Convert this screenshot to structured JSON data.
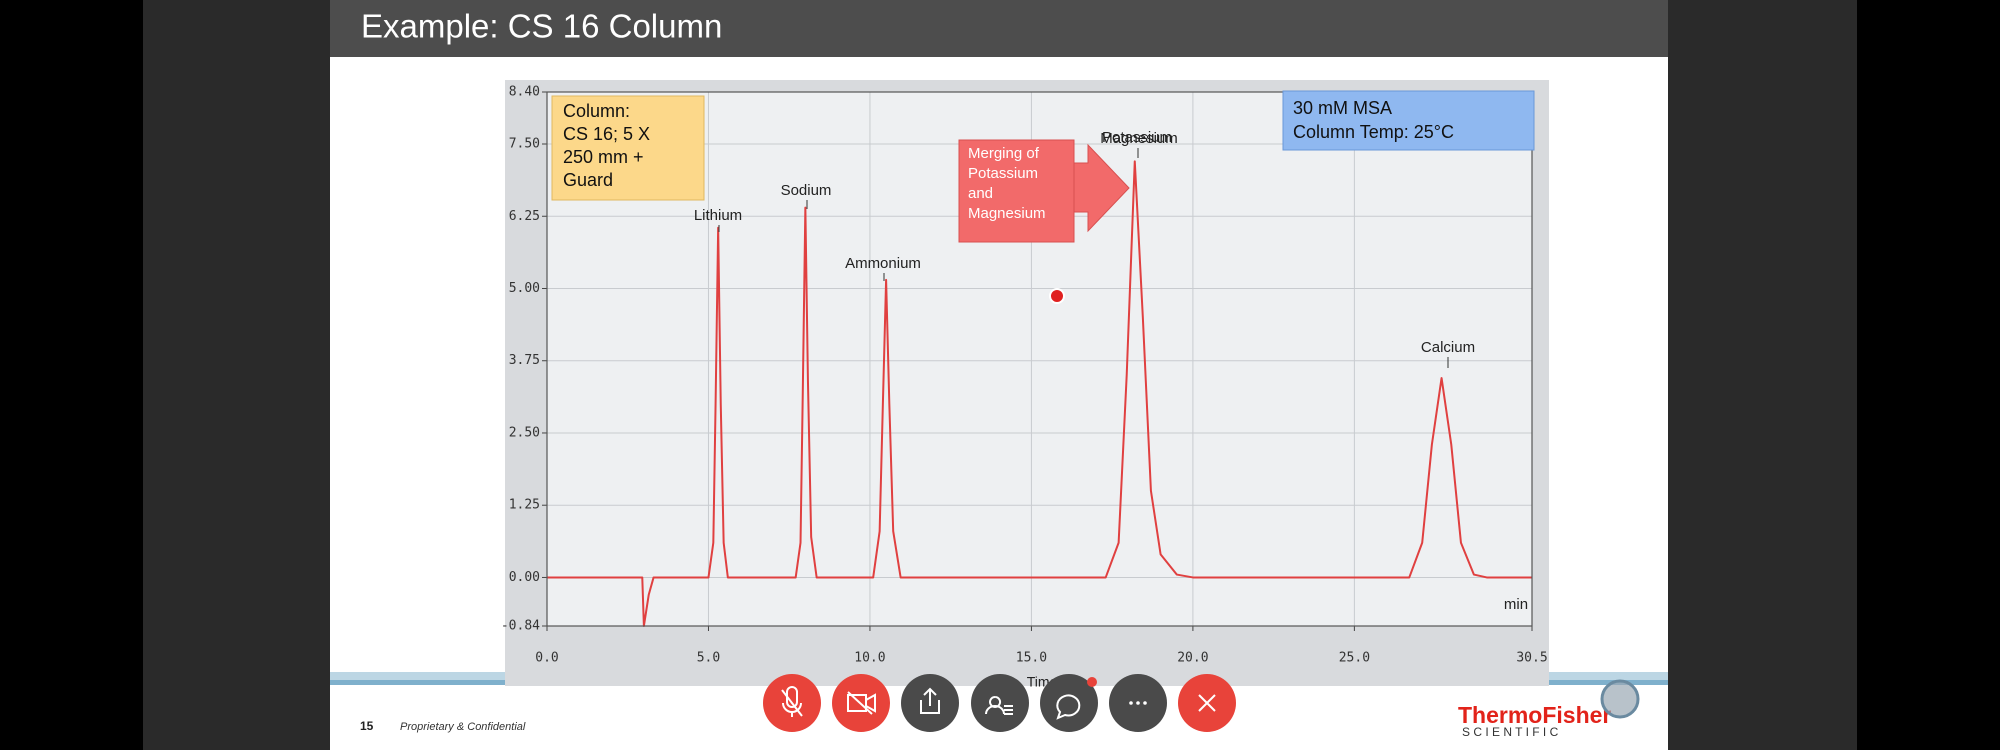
{
  "slide": {
    "title": "Example: CS 16 Column",
    "page_number": "15",
    "footer": "Proprietary & Confidential",
    "logo": {
      "brand": "ThermoFisher",
      "sub": "S C I E N T I F I C"
    }
  },
  "chart_data": {
    "type": "line",
    "color": "#e04040",
    "x": [
      0,
      2.95,
      3.0,
      3.15,
      3.3,
      5.0,
      5.15,
      5.22,
      5.3,
      5.38,
      5.47,
      5.6,
      7.7,
      7.85,
      7.92,
      8.0,
      8.08,
      8.18,
      8.35,
      10.1,
      10.3,
      10.4,
      10.5,
      10.6,
      10.72,
      10.95,
      17.3,
      17.7,
      17.95,
      18.2,
      18.45,
      18.7,
      19.0,
      19.5,
      20.0,
      26.7,
      27.1,
      27.4,
      27.7,
      28.0,
      28.3,
      28.7,
      29.1,
      30.5
    ],
    "values": [
      0,
      0,
      -0.84,
      -0.3,
      0,
      0,
      0.6,
      3.0,
      6.05,
      3.0,
      0.6,
      0,
      0,
      0.6,
      3.2,
      6.4,
      3.4,
      0.7,
      0,
      0,
      0.8,
      3.0,
      5.15,
      3.0,
      0.8,
      0,
      0,
      0.6,
      3.5,
      7.2,
      4.5,
      1.5,
      0.4,
      0.05,
      0,
      0,
      0.6,
      2.3,
      3.45,
      2.3,
      0.6,
      0.05,
      0,
      0
    ],
    "xlim": [
      0,
      30.5
    ],
    "ylim": [
      -0.84,
      8.4
    ],
    "xticks": [
      {
        "value": 0,
        "label": "0.0"
      },
      {
        "value": 5,
        "label": "5.0"
      },
      {
        "value": 10,
        "label": "10.0"
      },
      {
        "value": 15,
        "label": "15.0"
      },
      {
        "value": 20,
        "label": "20.0"
      },
      {
        "value": 25,
        "label": "25.0"
      },
      {
        "value": 30.5,
        "label": "30.5"
      }
    ],
    "yticks": [
      {
        "value": 8.4,
        "label": "8.40"
      },
      {
        "value": 7.5,
        "label": "7.50"
      },
      {
        "value": 6.25,
        "label": "6.25"
      },
      {
        "value": 5,
        "label": "5.00"
      },
      {
        "value": 3.75,
        "label": "3.75"
      },
      {
        "value": 2.5,
        "label": "2.50"
      },
      {
        "value": 1.25,
        "label": "1.25"
      },
      {
        "value": 0,
        "label": "0.00"
      },
      {
        "value": -0.84,
        "label": "-0.84"
      }
    ],
    "grid": true,
    "x_label": "Time",
    "x_unit": "min",
    "peak_labels": [
      "Lithium",
      "Sodium",
      "Ammonium",
      "Potassium",
      "Magnesium",
      "Calcium"
    ],
    "annotations": {
      "column": [
        "Column:",
        "CS 16; 5 X",
        "250 mm +",
        "Guard"
      ],
      "conditions": [
        "30 mM MSA",
        "Column Temp: 25°C"
      ],
      "merging": [
        "Merging of",
        "Potassium",
        "and",
        "Magnesium"
      ]
    }
  }
}
